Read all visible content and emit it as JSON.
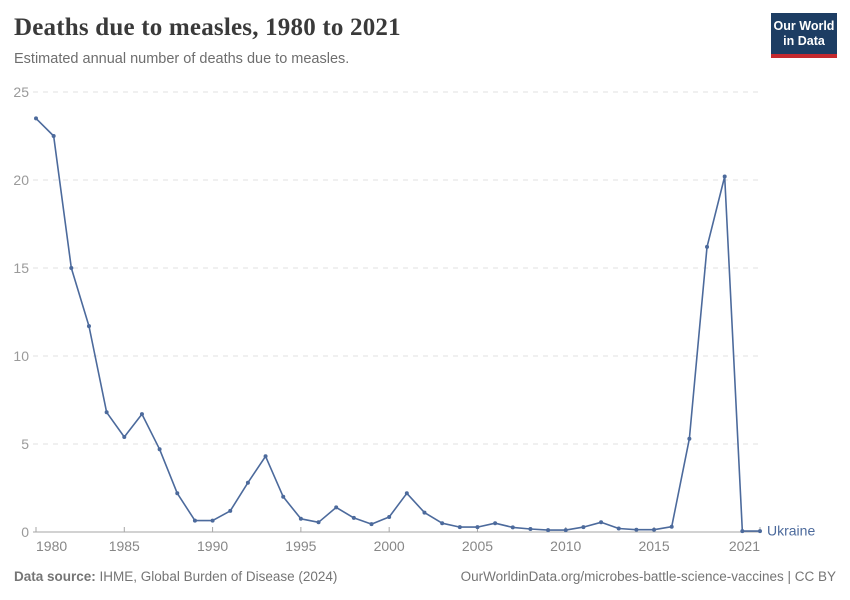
{
  "header": {
    "logo": {
      "line1": "Our World",
      "line2": "in Data"
    }
  },
  "chart_data": {
    "type": "line",
    "title": "Deaths due to measles, 1980 to 2021",
    "subtitle": "Estimated annual number of deaths due to measles.",
    "x": [
      1980,
      1981,
      1982,
      1983,
      1984,
      1985,
      1986,
      1987,
      1988,
      1989,
      1990,
      1991,
      1992,
      1993,
      1994,
      1995,
      1996,
      1997,
      1998,
      1999,
      2000,
      2001,
      2002,
      2003,
      2004,
      2005,
      2006,
      2007,
      2008,
      2009,
      2010,
      2011,
      2012,
      2013,
      2014,
      2015,
      2016,
      2017,
      2018,
      2019,
      2020,
      2021
    ],
    "series": [
      {
        "name": "Ukraine",
        "color": "#4C6A9C",
        "values": [
          23.5,
          22.5,
          15.0,
          11.7,
          6.8,
          5.4,
          6.7,
          4.7,
          2.2,
          0.65,
          0.65,
          1.2,
          2.8,
          4.3,
          2.0,
          0.75,
          0.55,
          1.4,
          0.8,
          0.45,
          0.85,
          2.2,
          1.1,
          0.5,
          0.28,
          0.28,
          0.5,
          0.26,
          0.17,
          0.11,
          0.11,
          0.28,
          0.55,
          0.2,
          0.13,
          0.13,
          0.3,
          5.3,
          16.2,
          20.2,
          0.05,
          0.05
        ]
      }
    ],
    "xlabel": "",
    "ylabel": "",
    "xlim": [
      1980,
      2021
    ],
    "ylim": [
      0,
      25
    ],
    "xticks": [
      1980,
      1985,
      1990,
      1995,
      2000,
      2005,
      2010,
      2015,
      2021
    ],
    "yticks": [
      0,
      5,
      10,
      15,
      20,
      25
    ],
    "grid": true,
    "legend_position": "entity-label-right-of-line-end"
  },
  "footer": {
    "source_label": "Data source:",
    "source_text": "IHME, Global Burden of Disease (2024)",
    "credit": "OurWorldinData.org/microbes-battle-science-vaccines | CC BY"
  },
  "colors": {
    "accent-line": "#4C6A9C",
    "logo-bg": "#1d3d63",
    "logo-red": "#c5292e",
    "title-text": "#3a3a3a",
    "subtitle-text": "#6e6e6e",
    "axis-text": "#9a9a9a",
    "axis-text-x": "#878787",
    "axis-line": "#a6a6a6",
    "grid-line": "#e0e0e0",
    "footer-text": "#757575"
  }
}
